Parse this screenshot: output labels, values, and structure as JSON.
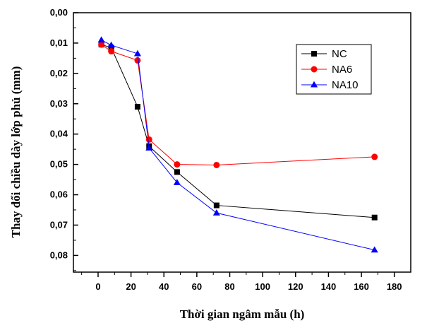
{
  "chart_data": {
    "type": "line",
    "title": "",
    "xlabel": "Thời gian ngâm mẫu (h)",
    "ylabel": "Thay đổi chiều dày lớp phủ (mm)",
    "xlim": [
      -15,
      190
    ],
    "ylim": [
      0.0,
      0.0855
    ],
    "y_inverted": true,
    "x_ticks": [
      0,
      20,
      40,
      60,
      80,
      100,
      120,
      140,
      160,
      180
    ],
    "x_tick_labels": [
      "0",
      "20",
      "40",
      "60",
      "80",
      "100",
      "120",
      "140",
      "160",
      "180"
    ],
    "y_ticks": [
      0.0,
      0.01,
      0.02,
      0.03,
      0.04,
      0.05,
      0.06,
      0.07,
      0.08
    ],
    "y_tick_labels": [
      "0,00",
      "0,01",
      "0,02",
      "0,03",
      "0,04",
      "0,05",
      "0,06",
      "0,07",
      "0,08"
    ],
    "grid": false,
    "legend_position": "top-right",
    "series": [
      {
        "name": "NC",
        "color": "#000000",
        "marker": "square",
        "x": [
          2,
          8,
          24,
          31,
          48,
          72,
          168
        ],
        "y": [
          0.0105,
          0.0115,
          0.031,
          0.044,
          0.0525,
          0.0635,
          0.0675
        ]
      },
      {
        "name": "NA6",
        "color": "#ff0000",
        "marker": "circle",
        "x": [
          2,
          8,
          24,
          31,
          48,
          72,
          168
        ],
        "y": [
          0.0105,
          0.0127,
          0.0157,
          0.0418,
          0.05,
          0.0502,
          0.0475
        ]
      },
      {
        "name": "NA10",
        "color": "#0000ff",
        "marker": "triangle",
        "x": [
          2,
          8,
          24,
          31,
          48,
          72,
          168
        ],
        "y": [
          0.009,
          0.0107,
          0.0135,
          0.0446,
          0.056,
          0.066,
          0.0782
        ]
      }
    ]
  }
}
